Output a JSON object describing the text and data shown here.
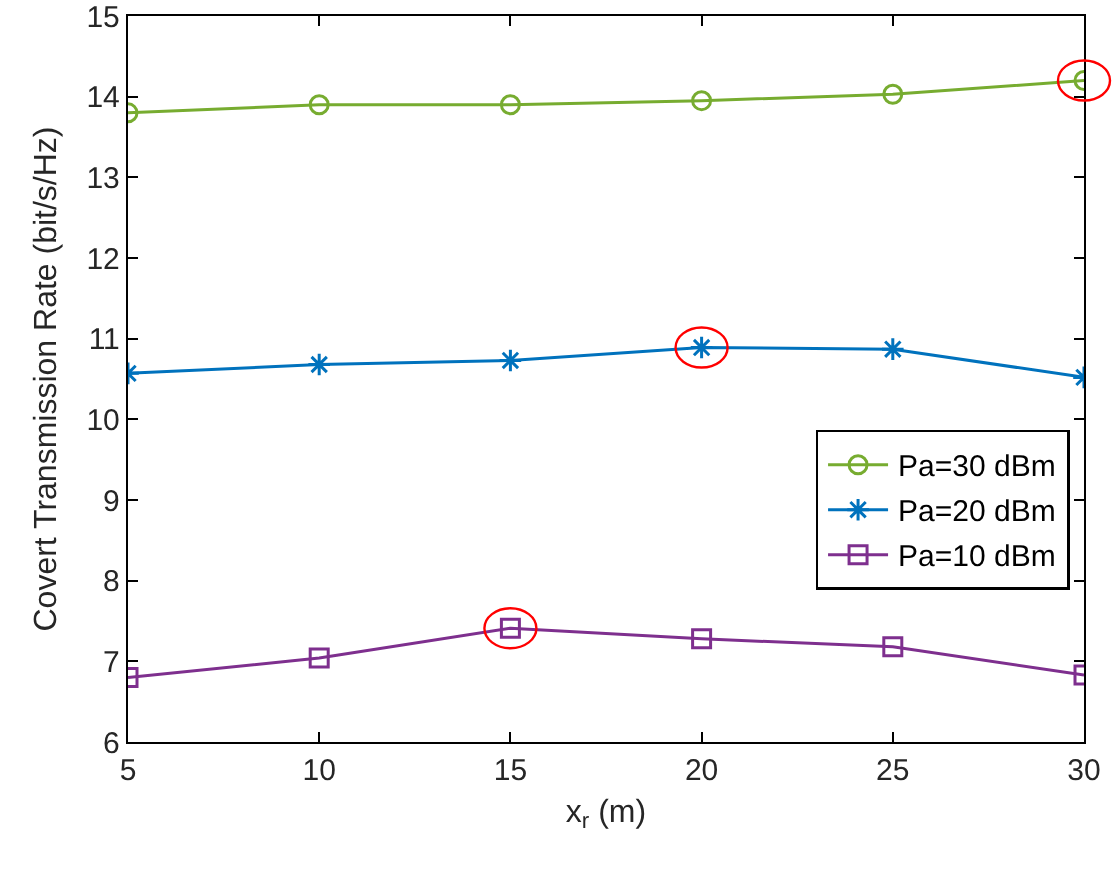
{
  "chart_data": {
    "type": "line",
    "xlabel": "x$_{r}$ (m)",
    "ylabel": "Covert Transmission Rate (bit/s/Hz)",
    "x": [
      5,
      10,
      15,
      20,
      25,
      30
    ],
    "series": [
      {
        "name": "Pa=30 dBm",
        "color": "#77ac30",
        "marker": "circle",
        "values": [
          13.8,
          13.9,
          13.9,
          13.95,
          14.03,
          14.2
        ]
      },
      {
        "name": "Pa=20 dBm",
        "color": "#0072bd",
        "marker": "cross",
        "values": [
          10.57,
          10.68,
          10.73,
          10.89,
          10.87,
          10.52
        ]
      },
      {
        "name": "Pa=10 dBm",
        "color": "#7e2f8e",
        "marker": "square",
        "values": [
          6.8,
          7.04,
          7.41,
          7.28,
          7.18,
          6.83
        ]
      }
    ],
    "xlim": [
      5,
      30
    ],
    "xticks": [
      5,
      10,
      15,
      20,
      25,
      30
    ],
    "ylim": [
      6,
      15
    ],
    "yticks": [
      6,
      7,
      8,
      9,
      10,
      11,
      12,
      13,
      14,
      15
    ],
    "grid": false,
    "legend": "right",
    "line_style": "solid"
  }
}
